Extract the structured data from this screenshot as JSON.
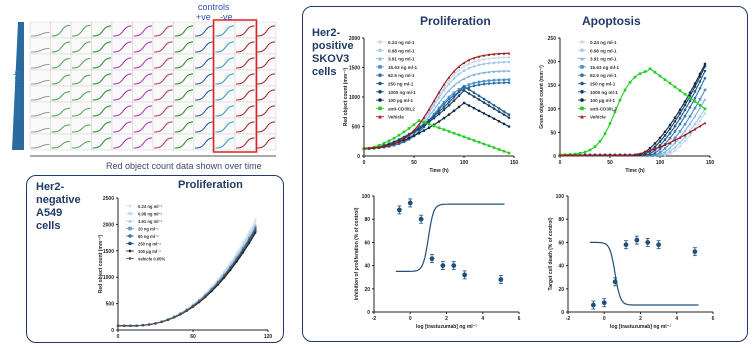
{
  "plate": {
    "controls_label": "controls",
    "pos_label": "+ve",
    "neg_label": "-ve",
    "axis_label": "trastuzumab",
    "caption": "Red object count data shown over time",
    "rows": 8,
    "cols": 12,
    "colors": [
      "#9a9a9a",
      "#5aa85a",
      "#5aa85a",
      "#3c8d3c",
      "#b040b0",
      "#b040b0",
      "#c04080",
      "#2a9a2a",
      "#3060a0",
      "#3aa0c0",
      "#b03030",
      "#b03030"
    ]
  },
  "her2_neg": {
    "label_lines": [
      "Her2-",
      "negative",
      "A549",
      "cells"
    ]
  },
  "her2_pos": {
    "label_lines": [
      "Her2-",
      "positive",
      "SKOV3",
      "cells"
    ]
  },
  "chart_data": [
    {
      "id": "a549-proliferation",
      "type": "line",
      "title": "Proliferation",
      "ylabel": "Red object count (mm⁻²)",
      "xlabel": "",
      "xticks": [
        "0",
        "60",
        "120"
      ],
      "yticks": [
        "0",
        "500",
        "1000",
        "1500",
        "2000",
        "2500"
      ],
      "xlim": [
        0,
        120
      ],
      "ylim": [
        0,
        2500
      ],
      "legend_position": "top-left",
      "series": [
        {
          "name": "0.24 ng ml⁻¹",
          "color": "#dfe8f0",
          "marker": "circle",
          "final": 2100
        },
        {
          "name": "0.98 ng ml⁻¹",
          "color": "#c8d8e8",
          "marker": "circle",
          "final": 2050
        },
        {
          "name": "3.91 ng ml⁻¹",
          "color": "#a9c8e0",
          "marker": "triangle",
          "final": 2000
        },
        {
          "name": "20 ng ml⁻¹",
          "color": "#5b9bd0",
          "marker": "square",
          "final": 1950
        },
        {
          "name": "60 ng ml⁻¹",
          "color": "#3a6fa0",
          "marker": "circle",
          "final": 1900
        },
        {
          "name": "250 ng ml⁻¹",
          "color": "#1f4f7a",
          "marker": "circle",
          "final": 1870
        },
        {
          "name": "100 µg ml⁻¹",
          "color": "#222222",
          "marker": "diamond",
          "final": 1840
        },
        {
          "name": "vehicle 0.05%",
          "color": "#555555",
          "marker": "diamond",
          "final": 1920
        }
      ]
    },
    {
      "id": "skov3-proliferation",
      "type": "line",
      "title": "Proliferation",
      "ylabel": "Red object count (mm⁻²)",
      "xlabel": "Time (h)",
      "xticks": [
        "0",
        "50",
        "100",
        "150"
      ],
      "yticks": [
        "0",
        "500",
        "1000",
        "1500",
        "2000"
      ],
      "xlim": [
        0,
        150
      ],
      "ylim": [
        0,
        2000
      ],
      "legend_position": "top-left",
      "series": [
        {
          "name": "0.24 ng ml-1",
          "color": "#c5dcf0",
          "marker": "circle",
          "y150": 1680
        },
        {
          "name": "0.98 ng ml-1",
          "color": "#a6c9ea",
          "marker": "circle",
          "y150": 1600
        },
        {
          "name": "3.91 ng ml-1",
          "color": "#7fb2e0",
          "marker": "triangle",
          "y150": 1450
        },
        {
          "name": "15.63 ng ml-1",
          "color": "#4f8fc8",
          "marker": "square",
          "y150": 1300
        },
        {
          "name": "62.5 ng ml-1",
          "color": "#2f6fa8",
          "marker": "circle",
          "y150": 1250
        },
        {
          "name": "250 ng ml-1",
          "color": "#1f5a8a",
          "marker": "circle",
          "y150": 700
        },
        {
          "name": "1000 ng ml-1",
          "color": "#173f66",
          "marker": "circle",
          "y150": 650
        },
        {
          "name": "100 µg ml-1",
          "color": "#0f2a45",
          "marker": "circle",
          "y150": 500
        },
        {
          "name": "anti-CD3/IL2",
          "color": "#22cc22",
          "marker": "square",
          "peak": 600,
          "peakx": 55,
          "y150": 50
        },
        {
          "name": "Vehicle",
          "color": "#a01818",
          "marker": "triangle",
          "y150": 1750
        }
      ]
    },
    {
      "id": "skov3-apoptosis",
      "type": "line",
      "title": "Apoptosis",
      "ylabel": "Green object count (mm⁻²)",
      "xlabel": "Time (h)",
      "xticks": [
        "0",
        "50",
        "100",
        "150"
      ],
      "yticks": [
        "0",
        "50",
        "100",
        "150",
        "200",
        "250"
      ],
      "xlim": [
        0,
        150
      ],
      "ylim": [
        0,
        250
      ],
      "legend_position": "top-left",
      "series": [
        {
          "name": "0.24 ng ml-1",
          "color": "#c5dcf0",
          "marker": "circle",
          "y150": 90
        },
        {
          "name": "0.98 ng ml-1",
          "color": "#a6c9ea",
          "marker": "circle",
          "y150": 100
        },
        {
          "name": "3.91 ng ml-1",
          "color": "#7fb2e0",
          "marker": "triangle",
          "y150": 120
        },
        {
          "name": "15.63 ng ml-1",
          "color": "#4f8fc8",
          "marker": "square",
          "y150": 140
        },
        {
          "name": "62.5 ng ml-1",
          "color": "#2f6fa8",
          "marker": "circle",
          "y150": 165
        },
        {
          "name": "250 ng ml-1",
          "color": "#1f5a8a",
          "marker": "circle",
          "y150": 180
        },
        {
          "name": "1000 ng ml-1",
          "color": "#173f66",
          "marker": "circle",
          "y150": 190
        },
        {
          "name": "100 µg ml-1",
          "color": "#0f2a45",
          "marker": "circle",
          "y150": 195
        },
        {
          "name": "anti-CD3/IL2",
          "color": "#22cc22",
          "marker": "square",
          "peak": 185,
          "peakx": 90,
          "y150": 100
        },
        {
          "name": "Vehicle",
          "color": "#a01818",
          "marker": "triangle",
          "y150": 70
        }
      ]
    },
    {
      "id": "skov3-inhibition",
      "type": "scatter",
      "title": "",
      "ylabel": "Inhibition of proliferation (% of control)",
      "xlabel": "log [trastuzumab] ng ml⁻¹",
      "xticks": [
        "-2",
        "0",
        "2",
        "4",
        "6"
      ],
      "yticks": [
        "0",
        "20",
        "40",
        "60",
        "80",
        "100"
      ],
      "xlim": [
        -2,
        6
      ],
      "ylim": [
        0,
        100
      ],
      "color": "#1f4f7a",
      "x": [
        -0.6,
        0.0,
        0.6,
        1.2,
        1.8,
        2.4,
        3.0,
        5.0
      ],
      "y": [
        88,
        94,
        80,
        46,
        40,
        40,
        32,
        28
      ],
      "fit": {
        "top": 93,
        "bottom": 35,
        "ec50": 1.0,
        "hill": -3
      }
    },
    {
      "id": "skov3-target-death",
      "type": "scatter",
      "title": "",
      "ylabel": "Target cell death (% of control)",
      "xlabel": "log [trastuzumab] ng ml⁻¹",
      "xticks": [
        "-2",
        "0",
        "2",
        "4",
        "6"
      ],
      "yticks": [
        "0",
        "20",
        "40",
        "60",
        "80",
        "100"
      ],
      "xlim": [
        -2,
        6
      ],
      "ylim": [
        0,
        100
      ],
      "color": "#1f4f7a",
      "x": [
        -0.6,
        0.0,
        0.6,
        1.2,
        1.8,
        2.4,
        3.0,
        5.0
      ],
      "y": [
        6,
        8,
        26,
        58,
        62,
        60,
        58,
        52
      ],
      "fit": {
        "top": 60,
        "bottom": 6,
        "ec50": 0.6,
        "hill": 3
      }
    }
  ]
}
